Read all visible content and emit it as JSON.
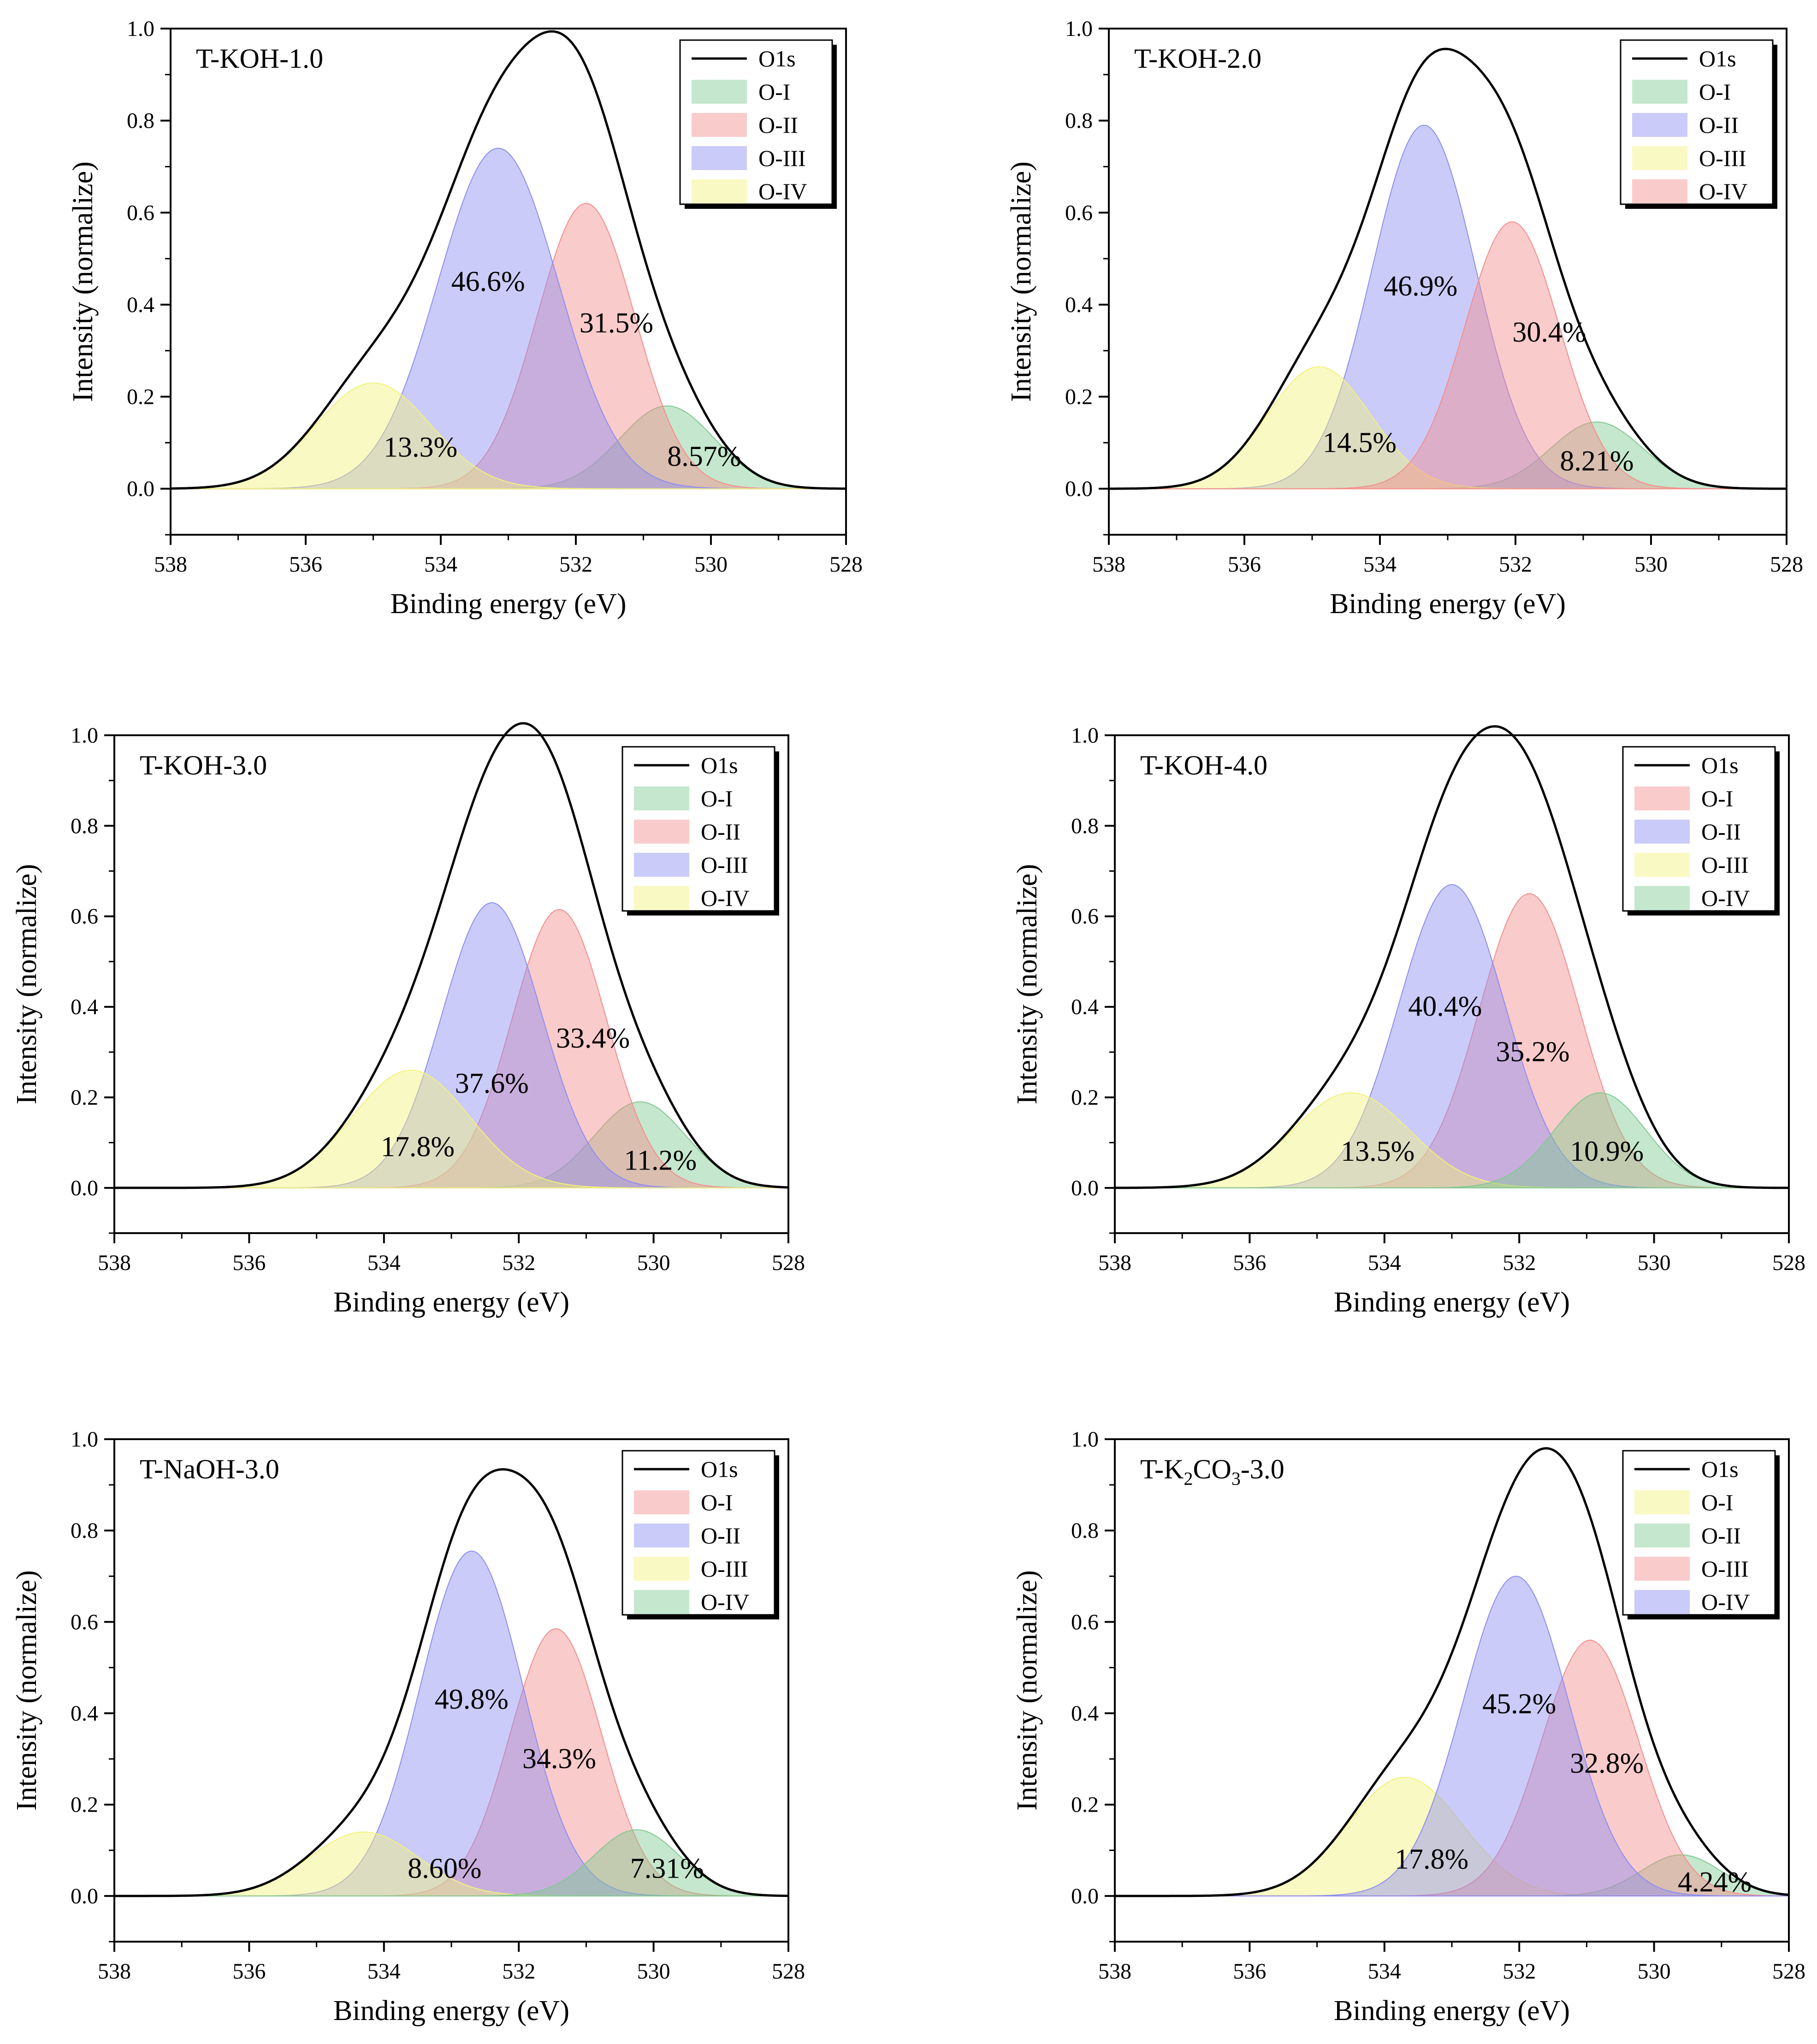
{
  "figure": {
    "panel_count": 6
  },
  "chart_data": [
    {
      "type": "area",
      "title": "T-KOH-1.0",
      "xlabel": "Binding energy (eV)",
      "ylabel": "Intensity (normalize)",
      "xlim": [
        538,
        528
      ],
      "ylim": [
        -0.1,
        1.0
      ],
      "xticks": [
        "538",
        "536",
        "534",
        "532",
        "530",
        "528"
      ],
      "yticks": [
        "0.0",
        "0.2",
        "0.4",
        "0.6",
        "0.8",
        "1.0"
      ],
      "legend_position": "top-right",
      "envelope": {
        "name": "O1s",
        "color": "#000000"
      },
      "series": [
        {
          "name": "O-I",
          "color": "#7fc990",
          "center": 530.65,
          "amplitude": 0.18,
          "fwhm": 1.65,
          "percent_label": "8.57%"
        },
        {
          "name": "O-II",
          "color": "#f58c8c",
          "center": 531.85,
          "amplitude": 0.62,
          "fwhm": 1.7,
          "percent_label": "31.5%"
        },
        {
          "name": "O-III",
          "color": "#8c8cf2",
          "center": 533.15,
          "amplitude": 0.74,
          "fwhm": 2.1,
          "percent_label": "46.6%"
        },
        {
          "name": "O-IV",
          "color": "#f2f27a",
          "center": 535.0,
          "amplitude": 0.23,
          "fwhm": 2.0,
          "percent_label": "13.3%"
        }
      ],
      "annotations": [
        {
          "text": "46.6%",
          "x": 533.3,
          "y": 0.43
        },
        {
          "text": "31.5%",
          "x": 531.4,
          "y": 0.34
        },
        {
          "text": "13.3%",
          "x": 534.3,
          "y": 0.07
        },
        {
          "text": "8.57%",
          "x": 530.1,
          "y": 0.05
        }
      ]
    },
    {
      "type": "area",
      "title": "T-KOH-2.0",
      "xlabel": "Binding energy (eV)",
      "ylabel": "Intensity (normalize)",
      "xlim": [
        538,
        528
      ],
      "ylim": [
        -0.1,
        1.0
      ],
      "xticks": [
        "538",
        "536",
        "534",
        "532",
        "530",
        "528"
      ],
      "yticks": [
        "0.0",
        "0.2",
        "0.4",
        "0.6",
        "0.8",
        "1.0"
      ],
      "legend_position": "top-right",
      "envelope": {
        "name": "O1s",
        "color": "#000000"
      },
      "series": [
        {
          "name": "O-I",
          "color": "#7fc990",
          "center": 530.8,
          "amplitude": 0.145,
          "fwhm": 1.6,
          "percent_label": "8.21%"
        },
        {
          "name": "O-II",
          "color": "#8c8cf2",
          "center": 533.35,
          "amplitude": 0.79,
          "fwhm": 1.8,
          "percent_label": "46.9%"
        },
        {
          "name": "O-III",
          "color": "#f2f27a",
          "center": 534.9,
          "amplitude": 0.265,
          "fwhm": 1.8,
          "percent_label": "14.5%"
        },
        {
          "name": "O-IV",
          "color": "#f58c8c",
          "center": 532.05,
          "amplitude": 0.58,
          "fwhm": 1.65,
          "percent_label": "30.4%"
        }
      ],
      "annotations": [
        {
          "text": "46.9%",
          "x": 533.4,
          "y": 0.42
        },
        {
          "text": "30.4%",
          "x": 531.5,
          "y": 0.32
        },
        {
          "text": "14.5%",
          "x": 534.3,
          "y": 0.08
        },
        {
          "text": "8.21%",
          "x": 530.8,
          "y": 0.04
        }
      ]
    },
    {
      "type": "area",
      "title": "T-KOH-3.0",
      "xlabel": "Binding energy (eV)",
      "ylabel": "Intensity (normalize)",
      "xlim": [
        538,
        528
      ],
      "ylim": [
        -0.1,
        1.0
      ],
      "xticks": [
        "538",
        "536",
        "534",
        "532",
        "530",
        "528"
      ],
      "yticks": [
        "0.0",
        "0.2",
        "0.4",
        "0.6",
        "0.8",
        "1.0"
      ],
      "legend_position": "top-right",
      "envelope": {
        "name": "O1s",
        "color": "#000000"
      },
      "series": [
        {
          "name": "O-I",
          "color": "#7fc990",
          "center": 530.2,
          "amplitude": 0.19,
          "fwhm": 1.6,
          "percent_label": "11.2%"
        },
        {
          "name": "O-II",
          "color": "#f58c8c",
          "center": 531.4,
          "amplitude": 0.615,
          "fwhm": 1.65,
          "percent_label": "33.4%"
        },
        {
          "name": "O-III",
          "color": "#8c8cf2",
          "center": 532.4,
          "amplitude": 0.63,
          "fwhm": 1.75,
          "percent_label": "37.6%"
        },
        {
          "name": "O-IV",
          "color": "#f2f27a",
          "center": 533.6,
          "amplitude": 0.26,
          "fwhm": 2.05,
          "percent_label": "17.8%"
        }
      ],
      "annotations": [
        {
          "text": "33.4%",
          "x": 530.9,
          "y": 0.31
        },
        {
          "text": "37.6%",
          "x": 532.4,
          "y": 0.21
        },
        {
          "text": "17.8%",
          "x": 533.5,
          "y": 0.07
        },
        {
          "text": "11.2%",
          "x": 529.9,
          "y": 0.04
        }
      ]
    },
    {
      "type": "area",
      "title": "T-KOH-4.0",
      "xlabel": "Binding energy (eV)",
      "ylabel": "Intensity (normalize)",
      "xlim": [
        538,
        528
      ],
      "ylim": [
        -0.1,
        1.0
      ],
      "xticks": [
        "538",
        "536",
        "534",
        "532",
        "530",
        "528"
      ],
      "yticks": [
        "0.0",
        "0.2",
        "0.4",
        "0.6",
        "0.8",
        "1.0"
      ],
      "legend_position": "top-right",
      "envelope": {
        "name": "O1s",
        "color": "#000000"
      },
      "series": [
        {
          "name": "O-I",
          "color": "#f58c8c",
          "center": 531.85,
          "amplitude": 0.65,
          "fwhm": 1.75,
          "percent_label": "35.2%"
        },
        {
          "name": "O-II",
          "color": "#8c8cf2",
          "center": 533.0,
          "amplitude": 0.67,
          "fwhm": 1.85,
          "percent_label": "40.4%"
        },
        {
          "name": "O-III",
          "color": "#f2f27a",
          "center": 534.5,
          "amplitude": 0.21,
          "fwhm": 2.05,
          "percent_label": "13.5%"
        },
        {
          "name": "O-IV",
          "color": "#7fc990",
          "center": 530.8,
          "amplitude": 0.21,
          "fwhm": 1.6,
          "percent_label": "10.9%"
        }
      ],
      "annotations": [
        {
          "text": "40.4%",
          "x": 533.1,
          "y": 0.38
        },
        {
          "text": "35.2%",
          "x": 531.8,
          "y": 0.28
        },
        {
          "text": "13.5%",
          "x": 534.1,
          "y": 0.06
        },
        {
          "text": "10.9%",
          "x": 530.7,
          "y": 0.06
        }
      ]
    },
    {
      "type": "area",
      "title": "T-NaOH-3.0",
      "xlabel": "Binding energy (eV)",
      "ylabel": "Intensity (normalize)",
      "xlim": [
        538,
        528
      ],
      "ylim": [
        -0.1,
        1.0
      ],
      "xticks": [
        "538",
        "536",
        "534",
        "532",
        "530",
        "528"
      ],
      "yticks": [
        "0.0",
        "0.2",
        "0.4",
        "0.6",
        "0.8",
        "1.0"
      ],
      "legend_position": "top-right",
      "envelope": {
        "name": "O1s",
        "color": "#000000"
      },
      "series": [
        {
          "name": "O-I",
          "color": "#f58c8c",
          "center": 531.45,
          "amplitude": 0.585,
          "fwhm": 1.6,
          "percent_label": "34.3%"
        },
        {
          "name": "O-II",
          "color": "#8c8cf2",
          "center": 532.7,
          "amplitude": 0.755,
          "fwhm": 1.8,
          "percent_label": "49.8%"
        },
        {
          "name": "O-III",
          "color": "#f2f27a",
          "center": 534.3,
          "amplitude": 0.14,
          "fwhm": 1.9,
          "percent_label": "8.60%"
        },
        {
          "name": "O-IV",
          "color": "#7fc990",
          "center": 530.25,
          "amplitude": 0.145,
          "fwhm": 1.5,
          "percent_label": "7.31%"
        }
      ],
      "annotations": [
        {
          "text": "49.8%",
          "x": 532.7,
          "y": 0.41
        },
        {
          "text": "34.3%",
          "x": 531.4,
          "y": 0.28
        },
        {
          "text": "8.60%",
          "x": 533.1,
          "y": 0.04
        },
        {
          "text": "7.31%",
          "x": 529.8,
          "y": 0.04
        }
      ]
    },
    {
      "type": "area",
      "title": "T-K2CO3-3.0",
      "title_parts": {
        "prefix": "T-K",
        "sub1": "2",
        "mid": "CO",
        "sub2": "3",
        "suffix": "-3.0"
      },
      "xlabel": "Binding energy (eV)",
      "ylabel": "Intensity (normalize)",
      "xlim": [
        538,
        528
      ],
      "ylim": [
        -0.1,
        1.0
      ],
      "xticks": [
        "538",
        "536",
        "534",
        "532",
        "530",
        "528"
      ],
      "yticks": [
        "0.0",
        "0.2",
        "0.4",
        "0.6",
        "0.8",
        "1.0"
      ],
      "legend_position": "top-right",
      "envelope": {
        "name": "O1s",
        "color": "#000000"
      },
      "series": [
        {
          "name": "O-I",
          "color": "#f2f27a",
          "center": 533.7,
          "amplitude": 0.26,
          "fwhm": 2.0,
          "percent_label": "17.8%"
        },
        {
          "name": "O-II",
          "color": "#7fc990",
          "center": 529.6,
          "amplitude": 0.09,
          "fwhm": 1.4,
          "percent_label": "4.24%"
        },
        {
          "name": "O-III",
          "color": "#f58c8c",
          "center": 530.95,
          "amplitude": 0.56,
          "fwhm": 1.7,
          "percent_label": "32.8%"
        },
        {
          "name": "O-IV",
          "color": "#8c8cf2",
          "center": 532.05,
          "amplitude": 0.7,
          "fwhm": 1.85,
          "percent_label": "45.2%"
        }
      ],
      "annotations": [
        {
          "text": "45.2%",
          "x": 532.0,
          "y": 0.4
        },
        {
          "text": "32.8%",
          "x": 530.7,
          "y": 0.27
        },
        {
          "text": "17.8%",
          "x": 533.3,
          "y": 0.06
        },
        {
          "text": "4.24%",
          "x": 529.1,
          "y": 0.01
        }
      ]
    }
  ]
}
